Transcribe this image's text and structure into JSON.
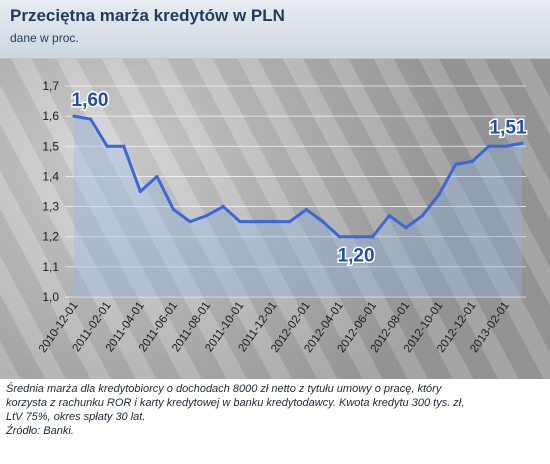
{
  "header": {
    "title": "Przeciętna marża kredytów w PLN",
    "subtitle": "dane w proc."
  },
  "footer": {
    "note_line1": "Średnia marża dla kredytobiorcy o dochodach 8000 zł netto z tytułu umowy o pracę, który",
    "note_line2": "korzysta z rachunku ROR i karty kredytowej w banku kredytodawcy. Kwota kredytu 300 tys. zł,",
    "note_line3": "LtV 75%, okres spłaty 30 lat.",
    "source": "Źródło: Banki."
  },
  "chart_data": {
    "type": "line",
    "title": "Przeciętna marża kredytów w PLN",
    "subtitle": "dane w proc.",
    "xlabel": "",
    "ylabel": "",
    "ylim": [
      1.0,
      1.7
    ],
    "yticks": [
      "1,0",
      "1,1",
      "1,2",
      "1,3",
      "1,4",
      "1,5",
      "1,6",
      "1,7"
    ],
    "xtick_labels": [
      "2010-12-01",
      "2011-02-01",
      "2011-04-01",
      "2011-06-01",
      "2011-08-01",
      "2011-10-01",
      "2011-12-01",
      "2012-02-01",
      "2012-04-01",
      "2012-06-01",
      "2012-08-01",
      "2012-10-01",
      "2012-12-01",
      "2013-02-01"
    ],
    "x": [
      "2010-12",
      "2011-01",
      "2011-02",
      "2011-03",
      "2011-04",
      "2011-05",
      "2011-06",
      "2011-07",
      "2011-08",
      "2011-09",
      "2011-10",
      "2011-11",
      "2011-12",
      "2012-01",
      "2012-02",
      "2012-03",
      "2012-04",
      "2012-05",
      "2012-06",
      "2012-07",
      "2012-08",
      "2012-09",
      "2012-10",
      "2012-11",
      "2012-12",
      "2013-01",
      "2013-02",
      "2013-03"
    ],
    "values": [
      1.6,
      1.59,
      1.5,
      1.5,
      1.35,
      1.4,
      1.29,
      1.25,
      1.27,
      1.3,
      1.25,
      1.25,
      1.25,
      1.25,
      1.29,
      1.25,
      1.2,
      1.2,
      1.2,
      1.27,
      1.23,
      1.27,
      1.34,
      1.44,
      1.45,
      1.5,
      1.5,
      1.51
    ],
    "annotations": [
      {
        "label": "1,60",
        "index": 0
      },
      {
        "label": "1,20",
        "index": 17
      },
      {
        "label": "1,51",
        "index": 27
      }
    ],
    "grid": true,
    "colors": {
      "line": "#3a68d6",
      "fill": "#8fb6ea",
      "label": "#1f4fa8",
      "grid": "#ffffff"
    }
  }
}
